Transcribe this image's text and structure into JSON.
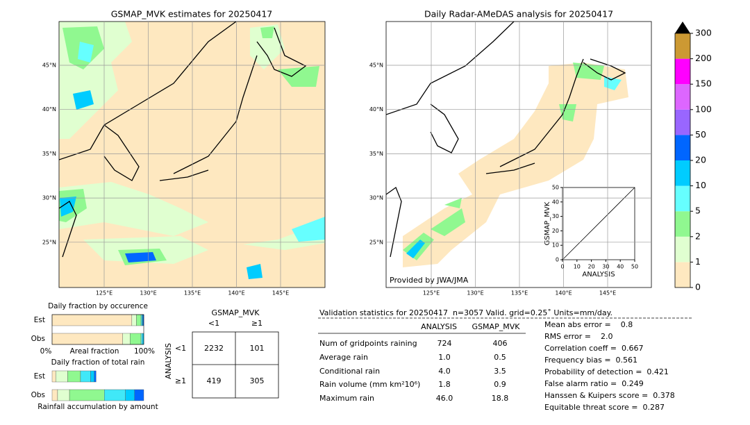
{
  "left_map": {
    "title": "GSMAP_MVK estimates for 20250417",
    "xticks": [
      {
        "value": 125,
        "label": "125°E"
      },
      {
        "value": 130,
        "label": "130°E"
      },
      {
        "value": 135,
        "label": "135°E"
      },
      {
        "value": 140,
        "label": "140°E"
      },
      {
        "value": 145,
        "label": "145°E"
      }
    ],
    "yticks": [
      {
        "value": 45,
        "label": "45°N"
      },
      {
        "value": 40,
        "label": "40°N"
      },
      {
        "value": 35,
        "label": "35°N"
      },
      {
        "value": 30,
        "label": "30°N"
      },
      {
        "value": 25,
        "label": "25°N"
      }
    ]
  },
  "right_map": {
    "title": "Daily Radar-AMeDAS analysis for 20250417",
    "credit": "Provided by JWA/JMA",
    "xticks": [
      {
        "value": 125,
        "label": "125°E"
      },
      {
        "value": 130,
        "label": "130°E"
      },
      {
        "value": 135,
        "label": "135°E"
      },
      {
        "value": 140,
        "label": "140°E"
      },
      {
        "value": 145,
        "label": "145°E"
      }
    ],
    "yticks": [
      {
        "value": 45,
        "label": "45°N"
      },
      {
        "value": 40,
        "label": "40°N"
      },
      {
        "value": 35,
        "label": "35°N"
      },
      {
        "value": 30,
        "label": "30°N"
      },
      {
        "value": 25,
        "label": "25°N"
      }
    ],
    "inset": {
      "xlabel": "ANALYSIS",
      "ylabel": "GSMAP_MVK",
      "xlim": [
        0,
        50
      ],
      "ylim": [
        0,
        50
      ],
      "xticks": [
        0,
        10,
        20,
        30,
        40,
        50
      ],
      "yticks": [
        0,
        10,
        20,
        30,
        40,
        50
      ]
    }
  },
  "colorbar": {
    "ticks": [
      0,
      1,
      2,
      5,
      10,
      20,
      50,
      100,
      150,
      200,
      300
    ],
    "colors": [
      "#fee8c0",
      "#e0ffd0",
      "#90f890",
      "#66ffff",
      "#00ccff",
      "#0066ff",
      "#9966ff",
      "#dd66ff",
      "#ff00ff",
      "#cc9933"
    ]
  },
  "occurrence": {
    "title": "Daily fraction by occurence",
    "left": "0%",
    "right": "100%",
    "xlabel": "Areal fraction",
    "colors": [
      "#fee8c0",
      "#e0ffd0",
      "#90f890",
      "#66ffff",
      "#00ccff",
      "#0066ff"
    ],
    "rows": [
      {
        "name": "Est",
        "values": [
          87,
          5,
          5,
          1,
          1,
          1
        ]
      },
      {
        "name": "Obs",
        "values": [
          77,
          8,
          12,
          1.5,
          1.5,
          0
        ]
      }
    ]
  },
  "total_rain": {
    "title": "Daily fraction of total rain",
    "xlabel": "Rainfall accumulation by amount",
    "colors": [
      "#fee8c0",
      "#e0ffd0",
      "#90f890",
      "#40e8f8",
      "#00ccff",
      "#0066ff"
    ],
    "rows": [
      {
        "name": "Est",
        "values": [
          4,
          13,
          14,
          11,
          4,
          2
        ]
      },
      {
        "name": "Obs",
        "values": [
          6,
          13,
          38,
          23,
          10,
          10
        ]
      }
    ]
  },
  "contingency": {
    "title": "GSMAP_MVK",
    "col_labels": [
      "<1",
      "≥1"
    ],
    "row_title": "ANALYSIS",
    "row_labels": [
      "<1",
      "≥1"
    ],
    "cells": [
      [
        2232,
        101
      ],
      [
        419,
        305
      ]
    ]
  },
  "stats": {
    "title": "Validation statistics for 20250417  n=3057 Valid. grid=0.25˚ Units=mm/day.",
    "columns": [
      "ANALYSIS",
      "GSMAP_MVK"
    ],
    "rows": [
      {
        "name": "Num of gridpoints raining",
        "values": [
          724,
          406
        ]
      },
      {
        "name": "Average rain",
        "values": [
          "1.0",
          "0.5"
        ]
      },
      {
        "name": "Conditional rain",
        "values": [
          "4.0",
          "3.5"
        ]
      },
      {
        "name": "Rain volume (mm km²10⁶)",
        "values": [
          "1.8",
          "0.9"
        ]
      },
      {
        "name": "Maximum rain",
        "values": [
          "46.0",
          "18.8"
        ]
      }
    ],
    "scores": [
      "Mean abs error =    0.8",
      "RMS error =    2.0",
      "Correlation coeff =  0.667",
      "Frequency bias =  0.561",
      "Probability of detection =  0.421",
      "False alarm ratio =  0.249",
      "Hanssen & Kuipers score =  0.378",
      "Equitable threat score =  0.287"
    ]
  }
}
